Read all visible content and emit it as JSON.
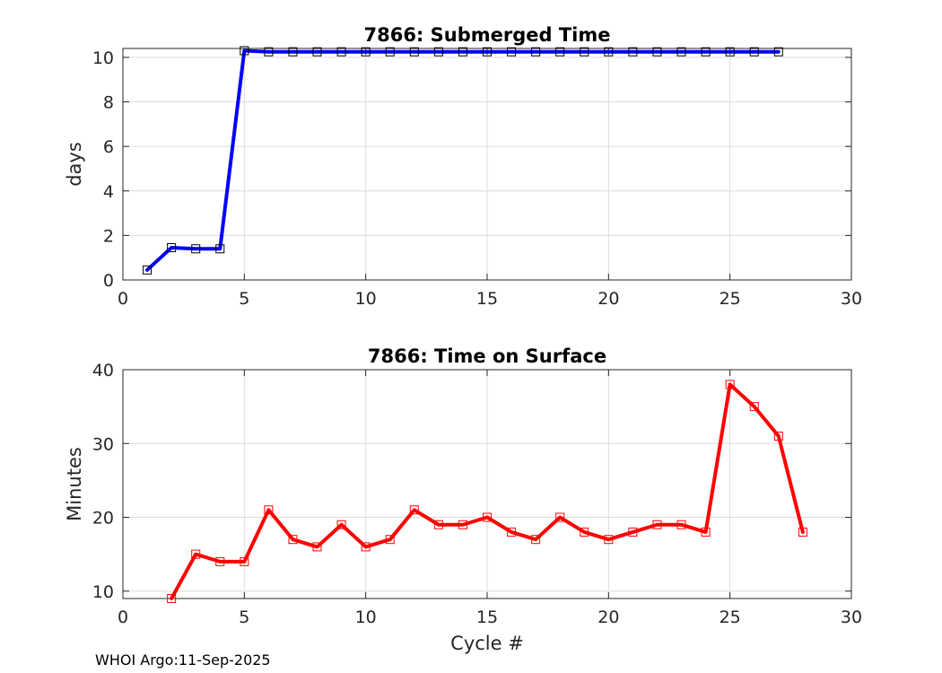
{
  "footer": "WHOI Argo:11-Sep-2025",
  "chart_data": [
    {
      "type": "line",
      "title": "7866: Submerged Time",
      "xlabel": "",
      "ylabel": "days",
      "xlim": [
        0,
        30
      ],
      "ylim": [
        0,
        10.4
      ],
      "xticks": [
        "0",
        "5",
        "10",
        "15",
        "20",
        "25",
        "30"
      ],
      "yticks": [
        "0",
        "2",
        "4",
        "6",
        "8",
        "10"
      ],
      "grid": true,
      "color": "#0000ff",
      "x": [
        1,
        2,
        3,
        4,
        5,
        6,
        7,
        8,
        9,
        10,
        11,
        12,
        13,
        14,
        15,
        16,
        17,
        18,
        19,
        20,
        21,
        22,
        23,
        24,
        25,
        26,
        27
      ],
      "values": [
        0.45,
        1.45,
        1.4,
        1.4,
        10.3,
        10.25,
        10.25,
        10.25,
        10.25,
        10.25,
        10.25,
        10.25,
        10.25,
        10.25,
        10.25,
        10.25,
        10.25,
        10.25,
        10.25,
        10.25,
        10.25,
        10.25,
        10.25,
        10.25,
        10.25,
        10.25,
        10.25
      ]
    },
    {
      "type": "line",
      "title": "7866: Time on Surface",
      "xlabel": "Cycle #",
      "ylabel": "Minutes",
      "xlim": [
        0,
        30
      ],
      "ylim": [
        9,
        40
      ],
      "xticks": [
        "0",
        "5",
        "10",
        "15",
        "20",
        "25",
        "30"
      ],
      "yticks": [
        "10",
        "20",
        "30",
        "40"
      ],
      "grid": true,
      "color": "#ff0000",
      "x": [
        2,
        3,
        4,
        5,
        6,
        7,
        8,
        9,
        10,
        11,
        12,
        13,
        14,
        15,
        16,
        17,
        18,
        19,
        20,
        21,
        22,
        23,
        24,
        25,
        26,
        27,
        28
      ],
      "values": [
        9,
        15,
        14,
        14,
        21,
        17,
        16,
        19,
        16,
        17,
        21,
        19,
        19,
        20,
        18,
        17,
        20,
        18,
        17,
        18,
        19,
        19,
        18,
        38,
        35,
        31,
        18
      ]
    }
  ]
}
